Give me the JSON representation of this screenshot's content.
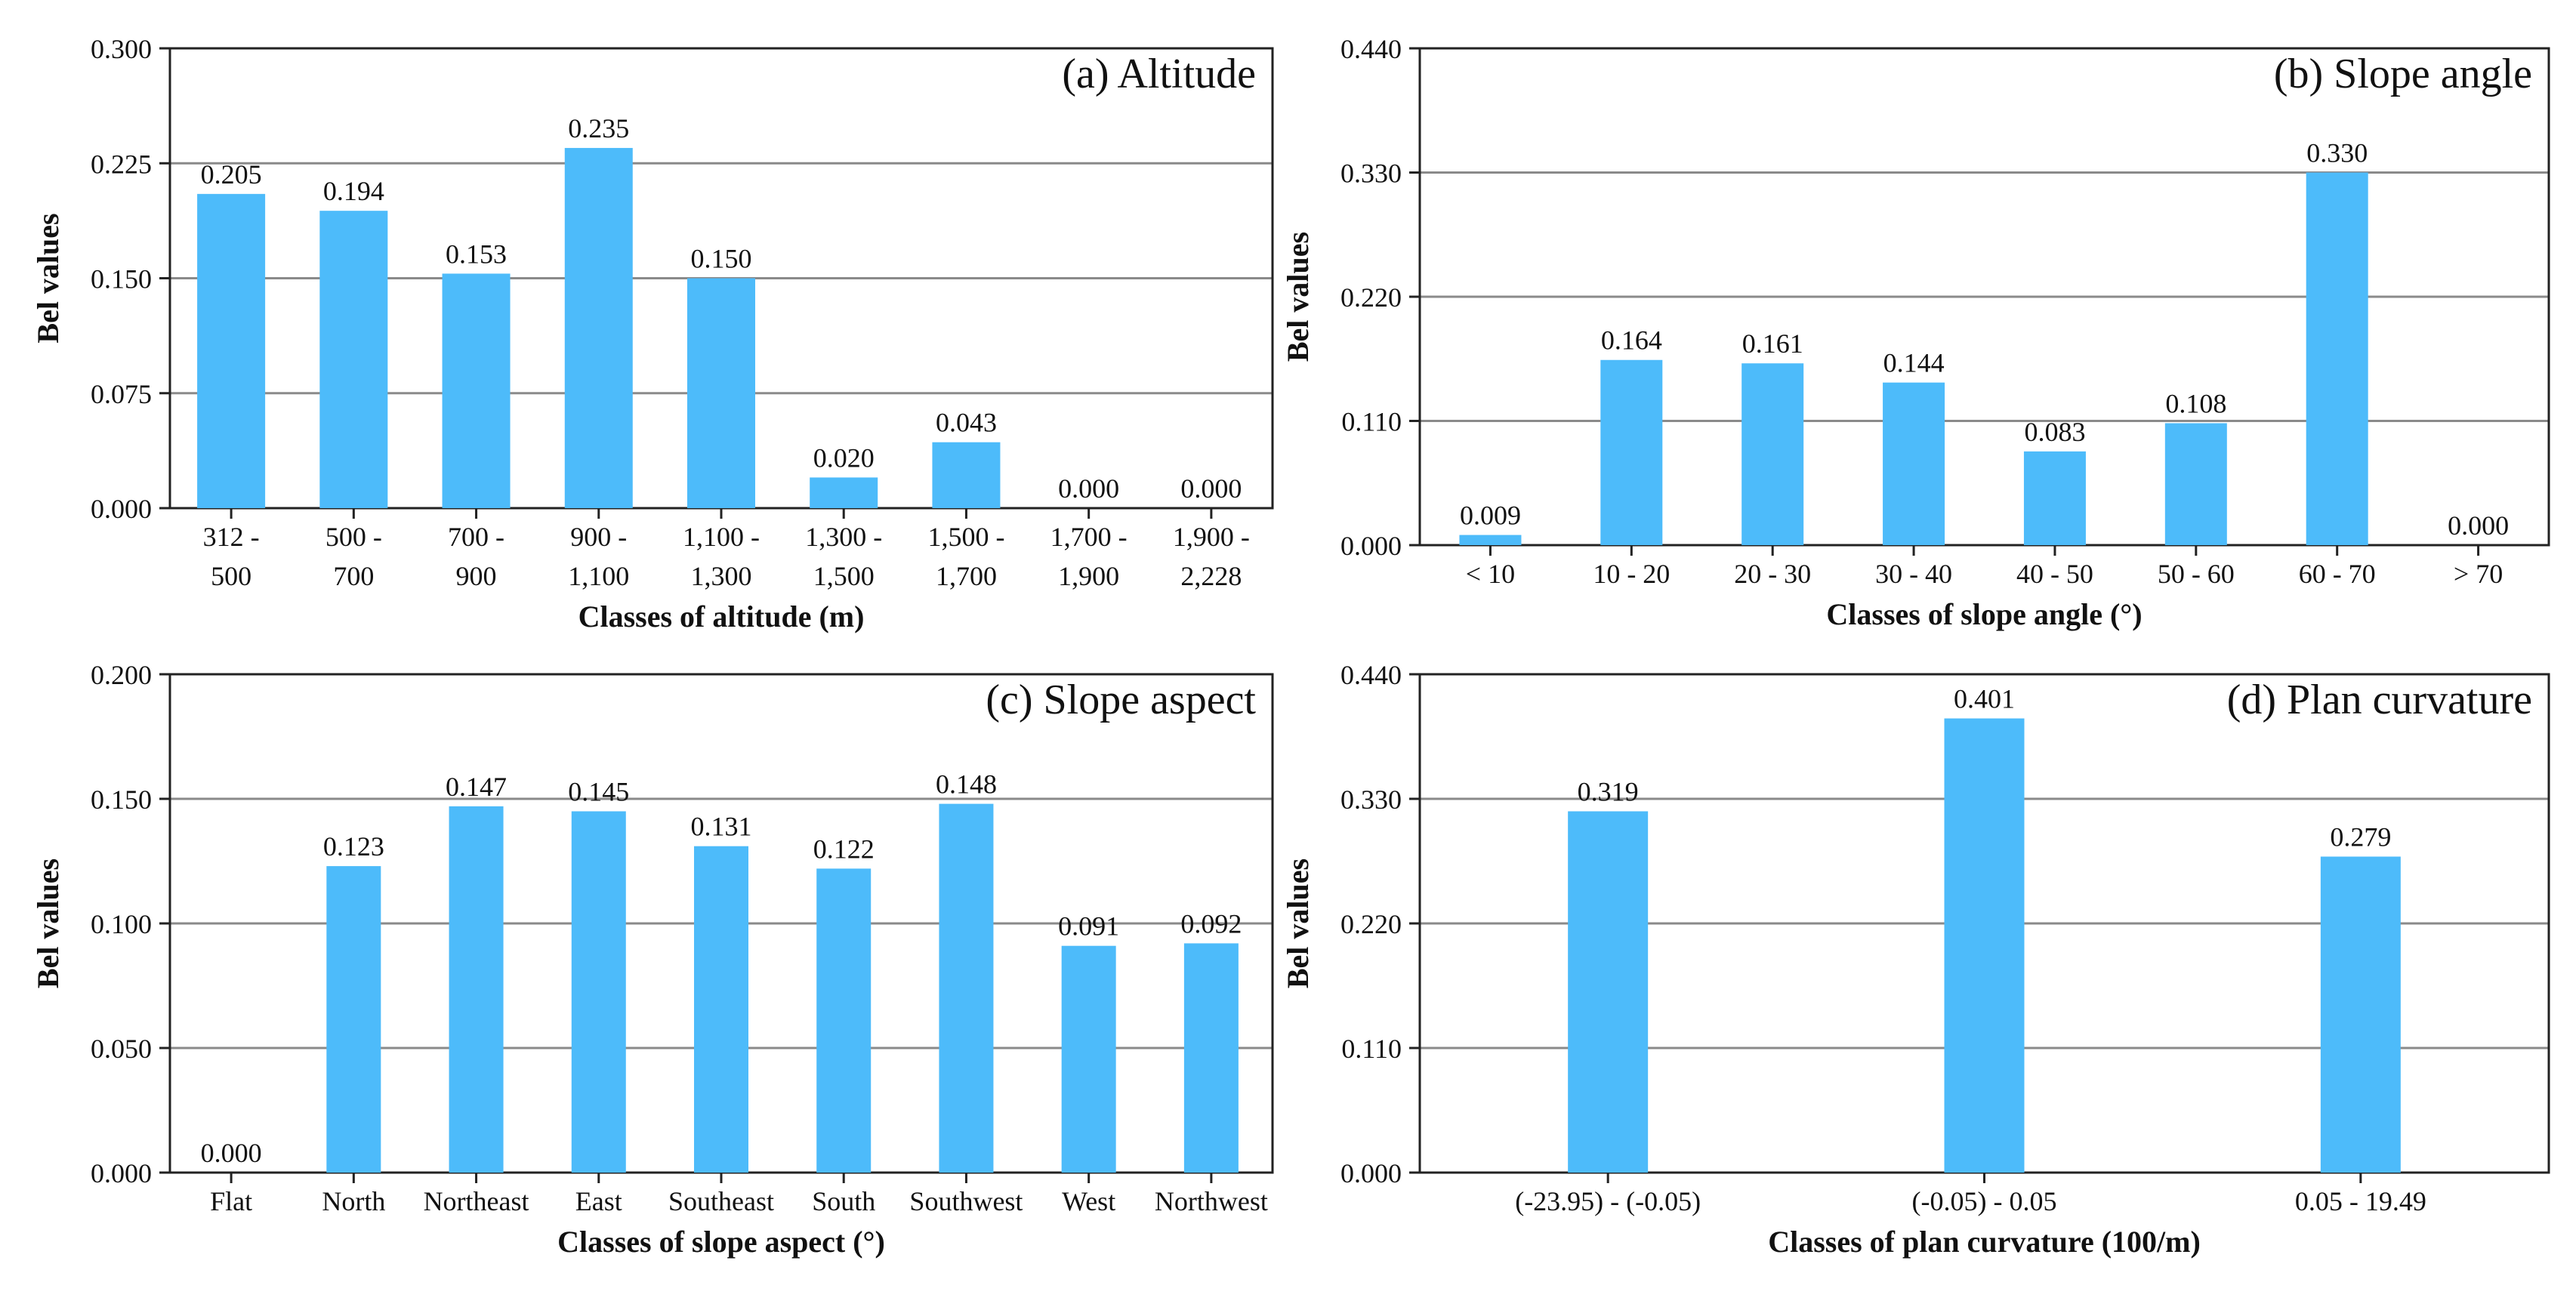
{
  "figure": {
    "bar_color": "#4DBBFA",
    "grid_color": "#8a8a8a",
    "axis_color": "#222222"
  },
  "chart_data": [
    {
      "type": "bar",
      "title": "(a) Altitude",
      "xlabel": "Classes of altitude (m)",
      "ylabel": "Bel values",
      "ylim": [
        0,
        0.3
      ],
      "yticks": [
        "0.000",
        "0.075",
        "0.150",
        "0.225",
        "0.300"
      ],
      "categories": [
        [
          "312 -",
          "500"
        ],
        [
          "500 -",
          "700"
        ],
        [
          "700 -",
          "900"
        ],
        [
          "900 -",
          "1,100"
        ],
        [
          "1,100 -",
          "1,300"
        ],
        [
          "1,300 -",
          "1,500"
        ],
        [
          "1,500 -",
          "1,700"
        ],
        [
          "1,700 -",
          "1,900"
        ],
        [
          "1,900 -",
          "2,228"
        ]
      ],
      "values": [
        0.205,
        0.194,
        0.153,
        0.235,
        0.15,
        0.02,
        0.043,
        0.0,
        0.0
      ],
      "labels": [
        "0.205",
        "0.194",
        "0.153",
        "0.235",
        "0.150",
        "0.020",
        "0.043",
        "0.000",
        "0.000"
      ]
    },
    {
      "type": "bar",
      "title": "(b) Slope angle",
      "xlabel": "Classes of slope angle (°)",
      "ylabel": "Bel values",
      "ylim": [
        0,
        0.44
      ],
      "yticks": [
        "0.000",
        "0.110",
        "0.220",
        "0.330",
        "0.440"
      ],
      "categories": [
        [
          "< 10"
        ],
        [
          "10 - 20"
        ],
        [
          "20 - 30"
        ],
        [
          "30 - 40"
        ],
        [
          "40 - 50"
        ],
        [
          "50 - 60"
        ],
        [
          "60 - 70"
        ],
        [
          "> 70"
        ]
      ],
      "values": [
        0.009,
        0.164,
        0.161,
        0.144,
        0.083,
        0.108,
        0.33,
        0.0
      ],
      "labels": [
        "0.009",
        "0.164",
        "0.161",
        "0.144",
        "0.083",
        "0.108",
        "0.330",
        "0.000"
      ]
    },
    {
      "type": "bar",
      "title": "(c) Slope aspect",
      "xlabel": "Classes of slope aspect (°)",
      "ylabel": "Bel values",
      "ylim": [
        0,
        0.2
      ],
      "yticks": [
        "0.000",
        "0.050",
        "0.100",
        "0.150",
        "0.200"
      ],
      "categories": [
        [
          "Flat"
        ],
        [
          "North"
        ],
        [
          "Northeast"
        ],
        [
          "East"
        ],
        [
          "Southeast"
        ],
        [
          "South"
        ],
        [
          "Southwest"
        ],
        [
          "West"
        ],
        [
          "Northwest"
        ]
      ],
      "values": [
        0.0,
        0.123,
        0.147,
        0.145,
        0.131,
        0.122,
        0.148,
        0.091,
        0.092
      ],
      "labels": [
        "0.000",
        "0.123",
        "0.147",
        "0.145",
        "0.131",
        "0.122",
        "0.148",
        "0.091",
        "0.092"
      ]
    },
    {
      "type": "bar",
      "title": "(d) Plan curvature",
      "xlabel": "Classes of plan curvature (100/m)",
      "ylabel": "Bel values",
      "ylim": [
        0,
        0.44
      ],
      "yticks": [
        "0.000",
        "0.110",
        "0.220",
        "0.330",
        "0.440"
      ],
      "categories": [
        [
          "(-23.95) - (-0.05)"
        ],
        [
          "(-0.05) - 0.05"
        ],
        [
          "0.05 - 19.49"
        ]
      ],
      "values": [
        0.319,
        0.401,
        0.279
      ],
      "labels": [
        "0.319",
        "0.401",
        "0.279"
      ]
    }
  ]
}
